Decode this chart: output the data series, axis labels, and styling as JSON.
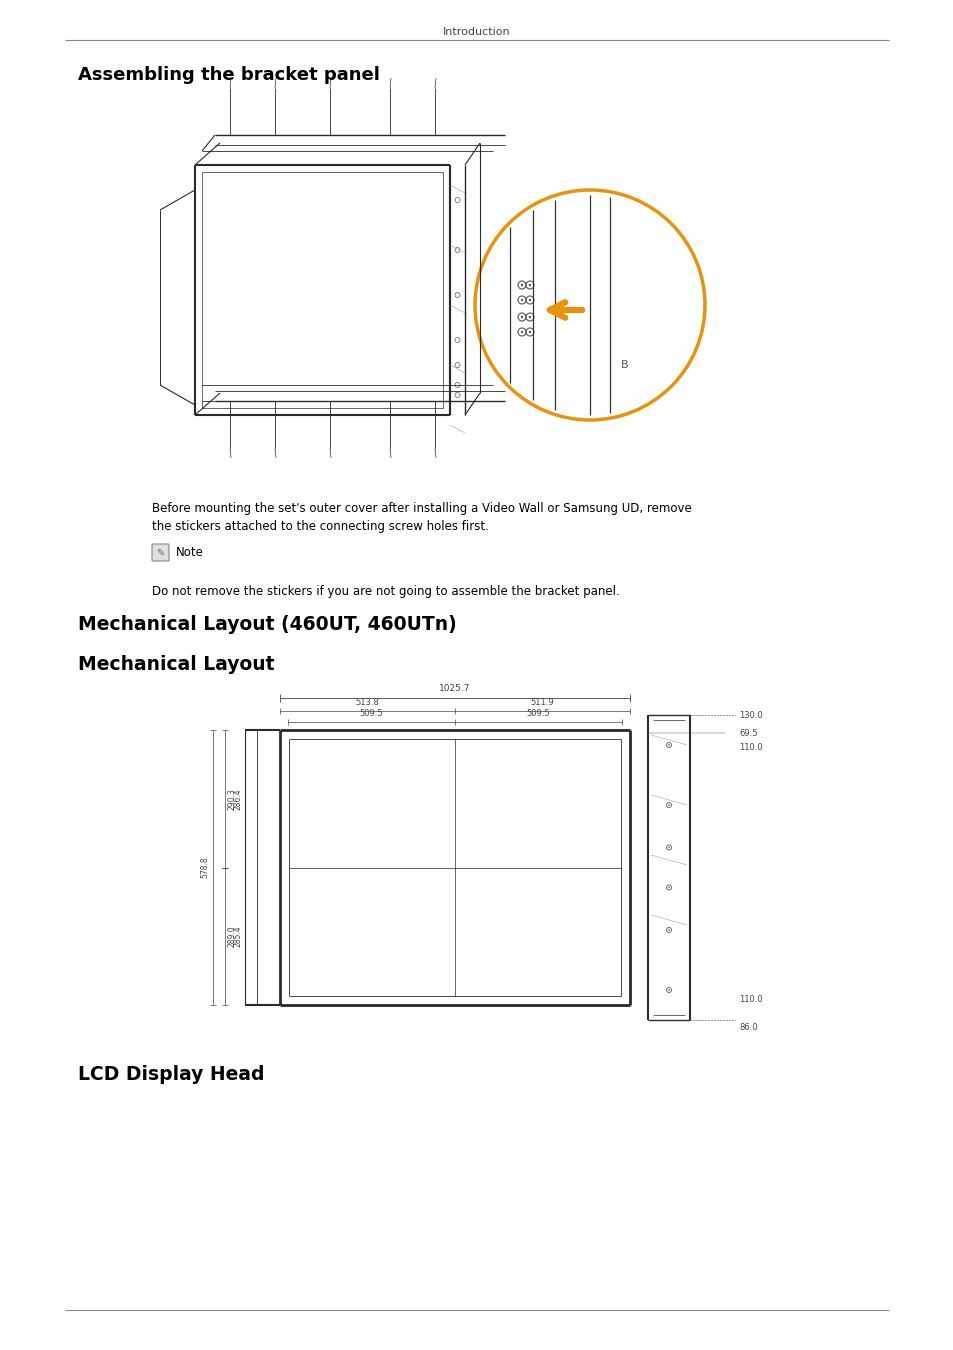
{
  "page_title": "Introduction",
  "section1_title": "Assembling the bracket panel",
  "note_text_line1": "Before mounting the set's outer cover after installing a Video Wall or Samsung UD, remove",
  "note_text_line2": "the stickers attached to the connecting screw holes first.",
  "note_label": "Note",
  "note_body": "Do not remove the stickers if you are not going to assemble the bracket panel.",
  "section2_title": "Mechanical Layout (460UT, 460UTn)",
  "section3_title": "Mechanical Layout",
  "section4_title": "LCD Display Head",
  "dim_top": "1025.7",
  "dim_top_left": "513.8",
  "dim_top_right": "511.9",
  "dim_inner_left": "509.5",
  "dim_inner_right": "509.5",
  "dim_right1": "130.0",
  "dim_right2": "69.5",
  "dim_right3": "110.0",
  "dim_right4": "110.0",
  "dim_right5": "86.0",
  "dim_left_upper1": "290.3",
  "dim_left_upper2": "286.4",
  "dim_total_height": "578.8",
  "dim_left_lower1": "289.0",
  "dim_left_lower2": "285.4",
  "bg_color": "#ffffff",
  "line_color": "#2a2a2a",
  "dim_color": "#444444",
  "text_color": "#000000",
  "orange_color": "#E8930A"
}
